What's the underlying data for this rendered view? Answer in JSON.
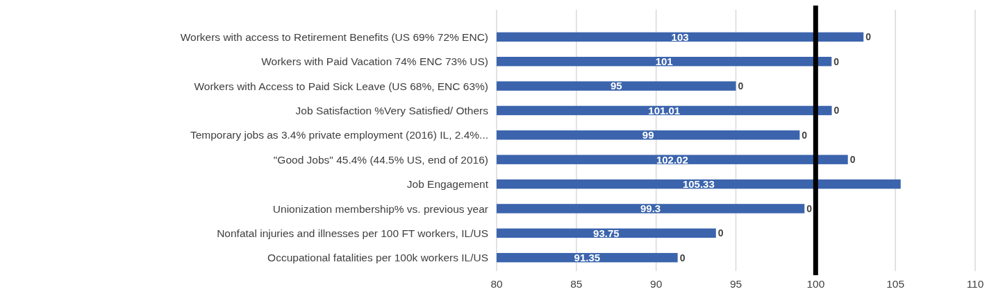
{
  "chart_data": {
    "type": "bar",
    "orientation": "horizontal",
    "categories": [
      "Workers with access to Retirement Benefits (US 69% 72% ENC)",
      "Workers with Paid Vacation 74% ENC 73% US)",
      "Workers with Access to Paid Sick Leave (US 68%, ENC 63%)",
      "Job Satisfaction %Very Satisfied/ Others",
      "Temporary jobs as 3.4% private employment (2016) IL, 2.4%...",
      "\"Good Jobs\" 45.4% (44.5% US, end of 2016)",
      "Job Engagement",
      "Unionization membership% vs. previous year",
      "Nonfatal injuries and illnesses per 100 FT workers, IL/US",
      "Occupational fatalities per 100k workers IL/US"
    ],
    "series": [
      {
        "color": "#3b64ad",
        "values": [
          103,
          101,
          95,
          101.01,
          99,
          102.02,
          105.33,
          99.3,
          93.75,
          91.35
        ]
      }
    ],
    "annotations": [
      {
        "text": "0",
        "x": 103,
        "y": "Workers with access to Retirement Benefits (US 69% 72% ENC)"
      },
      {
        "text": "0",
        "x": 101,
        "y": "Workers with Paid Vacation 74% ENC 73% US)"
      },
      {
        "text": "0",
        "x": 95,
        "y": "Workers with Access to Paid Sick Leave (US 68%, ENC 63%)"
      },
      {
        "text": "0",
        "x": 101.01,
        "y": "Job Satisfaction %Very Satisfied/ Others"
      },
      {
        "text": "0",
        "x": 99,
        "y": "Temporary jobs as 3.4% private employment (2016) IL, 2.4%..."
      },
      {
        "text": "0",
        "x": 102.02,
        "y": "\"Good Jobs\" 45.4% (44.5% US, end of 2016)"
      },
      {
        "text": "0",
        "x": 99.3,
        "y": "Unionization membership% vs. previous year"
      },
      {
        "text": "0",
        "x": 93.75,
        "y": "Nonfatal injuries and illnesses per 100 FT workers, IL/US"
      },
      {
        "text": "0",
        "x": 91.35,
        "y": "Occupational fatalities per 100k workers IL/US"
      }
    ],
    "data_labels": true,
    "xlim": [
      80,
      110
    ],
    "xticks": [
      80,
      85,
      90,
      95,
      100,
      105,
      110
    ],
    "grid": "x",
    "ref_lines": [
      {
        "axis": "x",
        "value": 100,
        "color": "#000000"
      }
    ]
  }
}
